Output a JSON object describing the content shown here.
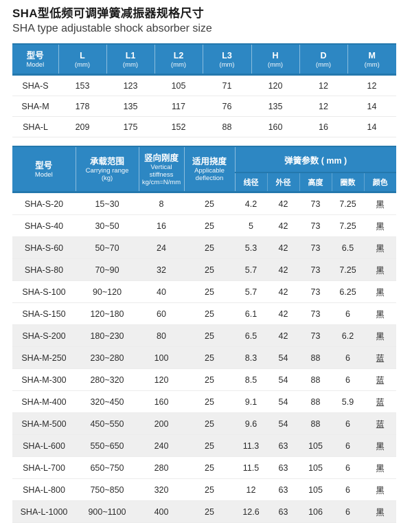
{
  "page": {
    "title_zh": "SHA型低频可调弹簧减振器规格尺寸",
    "title_en": "SHA type adjustable shock absorber size"
  },
  "colors": {
    "header_blue": "#2d87c3",
    "header_blue_dark": "#2478ad",
    "stripe_gray": "#efefef",
    "body_text": "#2b2b2b"
  },
  "size_table": {
    "columns": [
      {
        "line1": "型号",
        "line2": "Model"
      },
      {
        "line1": "L",
        "line2": "(mm)"
      },
      {
        "line1": "L1",
        "line2": "(mm)"
      },
      {
        "line1": "L2",
        "line2": "(mm)"
      },
      {
        "line1": "L3",
        "line2": "(mm)"
      },
      {
        "line1": "H",
        "line2": "(mm)"
      },
      {
        "line1": "D",
        "line2": "(mm)"
      },
      {
        "line1": "M",
        "line2": "(mm)"
      }
    ],
    "rows": [
      [
        "SHA-S",
        "153",
        "123",
        "105",
        "71",
        "120",
        "12",
        "12"
      ],
      [
        "SHA-M",
        "178",
        "135",
        "117",
        "76",
        "135",
        "12",
        "14"
      ],
      [
        "SHA-L",
        "209",
        "175",
        "152",
        "88",
        "160",
        "16",
        "14"
      ]
    ]
  },
  "spec_table": {
    "main_columns": [
      {
        "lines": [
          "型号",
          "Model"
        ]
      },
      {
        "lines": [
          "承载范围",
          "Carrying range",
          "(kg)"
        ]
      },
      {
        "lines": [
          "竖向刚度",
          "Vertical stiffness",
          "kg/cm=N/mm"
        ]
      },
      {
        "lines": [
          "适用挠度",
          "Applicable",
          "deflection"
        ]
      }
    ],
    "spring_group_label": "弹簧参数 ( mm )",
    "spring_sub_columns": [
      "线径",
      "外径",
      "高度",
      "圈数",
      "颜色"
    ],
    "rows": [
      [
        "SHA-S-20",
        "15~30",
        "8",
        "25",
        "4.2",
        "42",
        "73",
        "7.25",
        "黑"
      ],
      [
        "SHA-S-40",
        "30~50",
        "16",
        "25",
        "5",
        "42",
        "73",
        "7.25",
        "黑"
      ],
      [
        "SHA-S-60",
        "50~70",
        "24",
        "25",
        "5.3",
        "42",
        "73",
        "6.5",
        "黑"
      ],
      [
        "SHA-S-80",
        "70~90",
        "32",
        "25",
        "5.7",
        "42",
        "73",
        "7.25",
        "黑"
      ],
      [
        "SHA-S-100",
        "90~120",
        "40",
        "25",
        "5.7",
        "42",
        "73",
        "6.25",
        "黑"
      ],
      [
        "SHA-S-150",
        "120~180",
        "60",
        "25",
        "6.1",
        "42",
        "73",
        "6",
        "黑"
      ],
      [
        "SHA-S-200",
        "180~230",
        "80",
        "25",
        "6.5",
        "42",
        "73",
        "6.2",
        "黑"
      ],
      [
        "SHA-M-250",
        "230~280",
        "100",
        "25",
        "8.3",
        "54",
        "88",
        "6",
        "蓝"
      ],
      [
        "SHA-M-300",
        "280~320",
        "120",
        "25",
        "8.5",
        "54",
        "88",
        "6",
        "蓝"
      ],
      [
        "SHA-M-400",
        "320~450",
        "160",
        "25",
        "9.1",
        "54",
        "88",
        "5.9",
        "蓝"
      ],
      [
        "SHA-M-500",
        "450~550",
        "200",
        "25",
        "9.6",
        "54",
        "88",
        "6",
        "蓝"
      ],
      [
        "SHA-L-600",
        "550~650",
        "240",
        "25",
        "11.3",
        "63",
        "105",
        "6",
        "黑"
      ],
      [
        "SHA-L-700",
        "650~750",
        "280",
        "25",
        "11.5",
        "63",
        "105",
        "6",
        "黑"
      ],
      [
        "SHA-L-800",
        "750~850",
        "320",
        "25",
        "12",
        "63",
        "105",
        "6",
        "黑"
      ],
      [
        "SHA-L-1000",
        "900~1100",
        "400",
        "25",
        "12.6",
        "63",
        "106",
        "6",
        "黑"
      ]
    ],
    "striped_row_indexes": [
      2,
      3,
      6,
      7,
      10,
      11,
      14
    ]
  }
}
